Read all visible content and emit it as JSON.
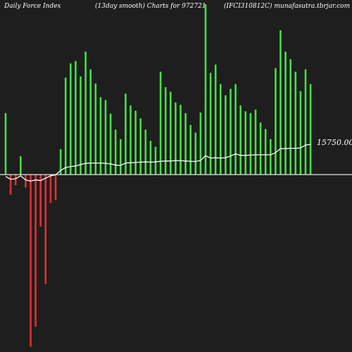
{
  "header": {
    "left": "Daily Force  Index",
    "center": "(13day smooth) Charts for 972721",
    "right": "(IFCI310812C) munafasutra.tbrjar.com"
  },
  "chart_data": {
    "type": "bar",
    "title": "Daily Force Index (13day smooth) Charts for 972721",
    "value_label": "15750.00",
    "colors": {
      "positive": "#44e044",
      "negative": "#e03030",
      "line": "#ffffff",
      "axis": "#e6e6e6",
      "background": "#1e1e1e"
    },
    "ylim": [
      -31000,
      29500
    ],
    "values": [
      10400,
      -3400,
      -1800,
      3100,
      -2200,
      -29100,
      -25700,
      -8800,
      -18500,
      -4800,
      -4300,
      4300,
      16400,
      18800,
      19200,
      16600,
      20800,
      17800,
      15400,
      13100,
      12600,
      10300,
      7600,
      6000,
      13700,
      11700,
      10800,
      9500,
      7600,
      5700,
      4700,
      17400,
      14800,
      14000,
      12200,
      11800,
      10400,
      8400,
      7100,
      10500,
      28800,
      17200,
      18600,
      15300,
      13400,
      14500,
      15300,
      11700,
      10700,
      10400,
      11000,
      8800,
      7700,
      6000,
      18000,
      24400,
      20800,
      19500,
      17400,
      14100,
      17800,
      15300
    ],
    "smooth": [
      -300,
      -800,
      -700,
      -200,
      -900,
      -1100,
      -900,
      -1000,
      -600,
      -200,
      -50,
      700,
      1200,
      1350,
      1450,
      1700,
      1900,
      1950,
      1950,
      1950,
      1900,
      1800,
      1600,
      1550,
      1950,
      2000,
      2050,
      2100,
      2150,
      2100,
      2150,
      2250,
      2300,
      2300,
      2350,
      2350,
      2300,
      2250,
      2200,
      2400,
      3200,
      2800,
      2850,
      2800,
      2850,
      3150,
      3500,
      3250,
      3250,
      3300,
      3350,
      3350,
      3350,
      3350,
      3700,
      4400,
      4400,
      4450,
      4450,
      4500,
      5000,
      5100
    ]
  }
}
